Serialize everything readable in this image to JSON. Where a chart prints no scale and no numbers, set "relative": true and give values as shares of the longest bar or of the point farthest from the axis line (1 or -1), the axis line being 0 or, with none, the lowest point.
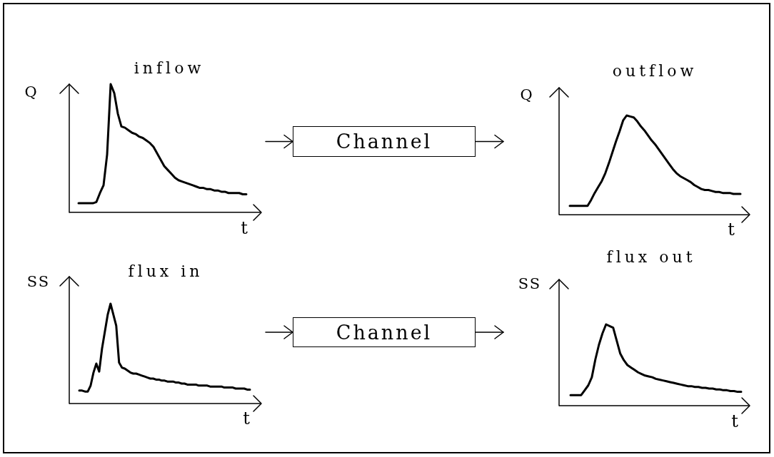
{
  "chart_data": [
    {
      "type": "line",
      "title": "inflow",
      "xlabel": "t",
      "ylabel": "Q",
      "relative": true,
      "categories": [
        null,
        null,
        null,
        null,
        null,
        null,
        null,
        null,
        null,
        null,
        null,
        null,
        null,
        null,
        null,
        null,
        null,
        null,
        null,
        null,
        null,
        null,
        null,
        null,
        null,
        null,
        null,
        null,
        null,
        null,
        null,
        null,
        null,
        null,
        null,
        null,
        null,
        null,
        null,
        null,
        null,
        null,
        null,
        null,
        null,
        null,
        null,
        null
      ],
      "series": [
        {
          "color": "#000000",
          "values": [
            0.07,
            0.07,
            0.07,
            0.07,
            0.07,
            0.08,
            0.15,
            0.21,
            0.45,
            1,
            0.93,
            0.77,
            0.67,
            0.66,
            0.64,
            0.62,
            0.61,
            0.59,
            0.58,
            0.56,
            0.54,
            0.51,
            0.46,
            0.41,
            0.36,
            0.33,
            0.3,
            0.27,
            0.25,
            0.24,
            0.23,
            0.22,
            0.21,
            0.2,
            0.19,
            0.19,
            0.18,
            0.18,
            0.17,
            0.17,
            0.16,
            0.16,
            0.15,
            0.15,
            0.15,
            0.15,
            0.14,
            0.14
          ]
        }
      ]
    },
    {
      "type": "other",
      "annotations": [
        "Channel"
      ]
    },
    {
      "type": "line",
      "title": "outflow",
      "xlabel": "t",
      "ylabel": "Q",
      "relative": true,
      "categories": [
        null,
        null,
        null,
        null,
        null,
        null,
        null,
        null,
        null,
        null,
        null,
        null,
        null,
        null,
        null,
        null,
        null,
        null,
        null,
        null,
        null,
        null,
        null,
        null,
        null,
        null,
        null,
        null,
        null,
        null,
        null,
        null,
        null,
        null,
        null,
        null,
        null,
        null,
        null,
        null,
        null,
        null,
        null,
        null,
        null,
        null,
        null,
        null,
        null
      ],
      "series": [
        {
          "color": "#000000",
          "values": [
            0.09,
            0.09,
            0.09,
            0.09,
            0.09,
            0.09,
            0.15,
            0.22,
            0.28,
            0.34,
            0.42,
            0.52,
            0.63,
            0.74,
            0.84,
            0.95,
            1,
            0.99,
            0.98,
            0.94,
            0.89,
            0.85,
            0.8,
            0.75,
            0.71,
            0.66,
            0.61,
            0.56,
            0.51,
            0.46,
            0.42,
            0.39,
            0.37,
            0.35,
            0.33,
            0.3,
            0.28,
            0.26,
            0.25,
            0.25,
            0.24,
            0.23,
            0.23,
            0.22,
            0.22,
            0.22,
            0.21,
            0.21,
            0.21
          ]
        }
      ]
    },
    {
      "type": "line",
      "title": "flux in",
      "xlabel": "t",
      "ylabel": "SS",
      "relative": true,
      "categories": [
        null,
        null,
        null,
        null,
        null,
        null,
        null,
        null,
        null,
        null,
        null,
        null,
        null,
        null,
        null,
        null,
        null,
        null,
        null,
        null,
        null,
        null,
        null,
        null,
        null,
        null,
        null,
        null,
        null,
        null,
        null,
        null,
        null,
        null,
        null,
        null,
        null,
        null,
        null,
        null,
        null,
        null,
        null,
        null,
        null,
        null,
        null,
        null,
        null,
        null,
        null,
        null,
        null,
        null,
        null,
        null,
        null,
        null,
        null,
        null,
        null
      ],
      "series": [
        {
          "color": "#000000",
          "values": [
            0.13,
            0.13,
            0.12,
            0.12,
            0.18,
            0.31,
            0.4,
            0.32,
            0.55,
            0.72,
            0.89,
            1,
            0.89,
            0.78,
            0.41,
            0.36,
            0.35,
            0.33,
            0.31,
            0.3,
            0.3,
            0.29,
            0.28,
            0.27,
            0.26,
            0.25,
            0.25,
            0.24,
            0.24,
            0.23,
            0.23,
            0.22,
            0.22,
            0.22,
            0.21,
            0.21,
            0.2,
            0.2,
            0.19,
            0.19,
            0.19,
            0.19,
            0.18,
            0.18,
            0.18,
            0.18,
            0.17,
            0.17,
            0.17,
            0.17,
            0.17,
            0.16,
            0.16,
            0.16,
            0.16,
            0.15,
            0.15,
            0.15,
            0.15,
            0.14,
            0.14
          ]
        }
      ]
    },
    {
      "type": "other",
      "annotations": [
        "Channel"
      ]
    },
    {
      "type": "line",
      "title": "flux out",
      "xlabel": "t",
      "ylabel": "SS",
      "relative": true,
      "categories": [
        null,
        null,
        null,
        null,
        null,
        null,
        null,
        null,
        null,
        null,
        null,
        null,
        null,
        null,
        null,
        null,
        null,
        null,
        null,
        null,
        null,
        null,
        null,
        null,
        null,
        null,
        null,
        null,
        null,
        null,
        null,
        null,
        null,
        null,
        null,
        null,
        null,
        null,
        null,
        null,
        null,
        null,
        null,
        null,
        null,
        null,
        null,
        null,
        null
      ],
      "series": [
        {
          "color": "#000000",
          "values": [
            0.13,
            0.13,
            0.13,
            0.13,
            0.19,
            0.25,
            0.35,
            0.57,
            0.75,
            0.89,
            1,
            0.98,
            0.96,
            0.8,
            0.64,
            0.56,
            0.5,
            0.47,
            0.44,
            0.41,
            0.39,
            0.37,
            0.36,
            0.35,
            0.33,
            0.32,
            0.31,
            0.3,
            0.29,
            0.28,
            0.27,
            0.26,
            0.25,
            0.24,
            0.24,
            0.23,
            0.23,
            0.22,
            0.22,
            0.21,
            0.21,
            0.2,
            0.2,
            0.19,
            0.19,
            0.18,
            0.18,
            0.17,
            0.17
          ]
        }
      ]
    }
  ]
}
